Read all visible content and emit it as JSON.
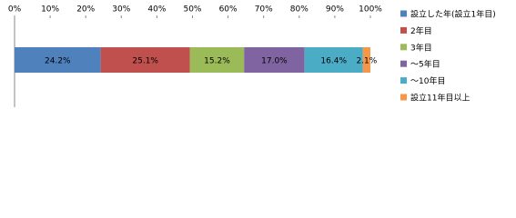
{
  "chart_data": {
    "type": "stacked_bar_h",
    "categories": [
      null
    ],
    "series": [
      {
        "name": "設立した年(設立1年目)",
        "color": "#4f81bd",
        "values": [
          24.2
        ],
        "value_labels": [
          "24.2%"
        ]
      },
      {
        "name": "2年目",
        "color": "#c0504d",
        "values": [
          25.1
        ],
        "value_labels": [
          "25.1%"
        ]
      },
      {
        "name": "3年目",
        "color": "#9bbb59",
        "values": [
          15.2
        ],
        "value_labels": [
          "15.2%"
        ]
      },
      {
        "name": "～5年目",
        "color": "#8064a2",
        "values": [
          17.0
        ],
        "value_labels": [
          "17.0%"
        ]
      },
      {
        "name": "～10年目",
        "color": "#4bacc6",
        "values": [
          16.4
        ],
        "value_labels": [
          "16.4%"
        ]
      },
      {
        "name": "設立11年目以上",
        "color": "#f79646",
        "values": [
          2.1
        ],
        "value_labels": [
          "2.1%"
        ]
      }
    ],
    "xlim": [
      0,
      100
    ],
    "xticks": [
      {
        "value": 0,
        "label": "0%"
      },
      {
        "value": 10,
        "label": "10%"
      },
      {
        "value": 20,
        "label": "20%"
      },
      {
        "value": 30,
        "label": "30%"
      },
      {
        "value": 40,
        "label": "40%"
      },
      {
        "value": 50,
        "label": "50%"
      },
      {
        "value": 60,
        "label": "60%"
      },
      {
        "value": 70,
        "label": "70%"
      },
      {
        "value": 80,
        "label": "80%"
      },
      {
        "value": 90,
        "label": "90%"
      },
      {
        "value": 100,
        "label": "100%"
      }
    ],
    "grid": false,
    "legend": "right"
  }
}
